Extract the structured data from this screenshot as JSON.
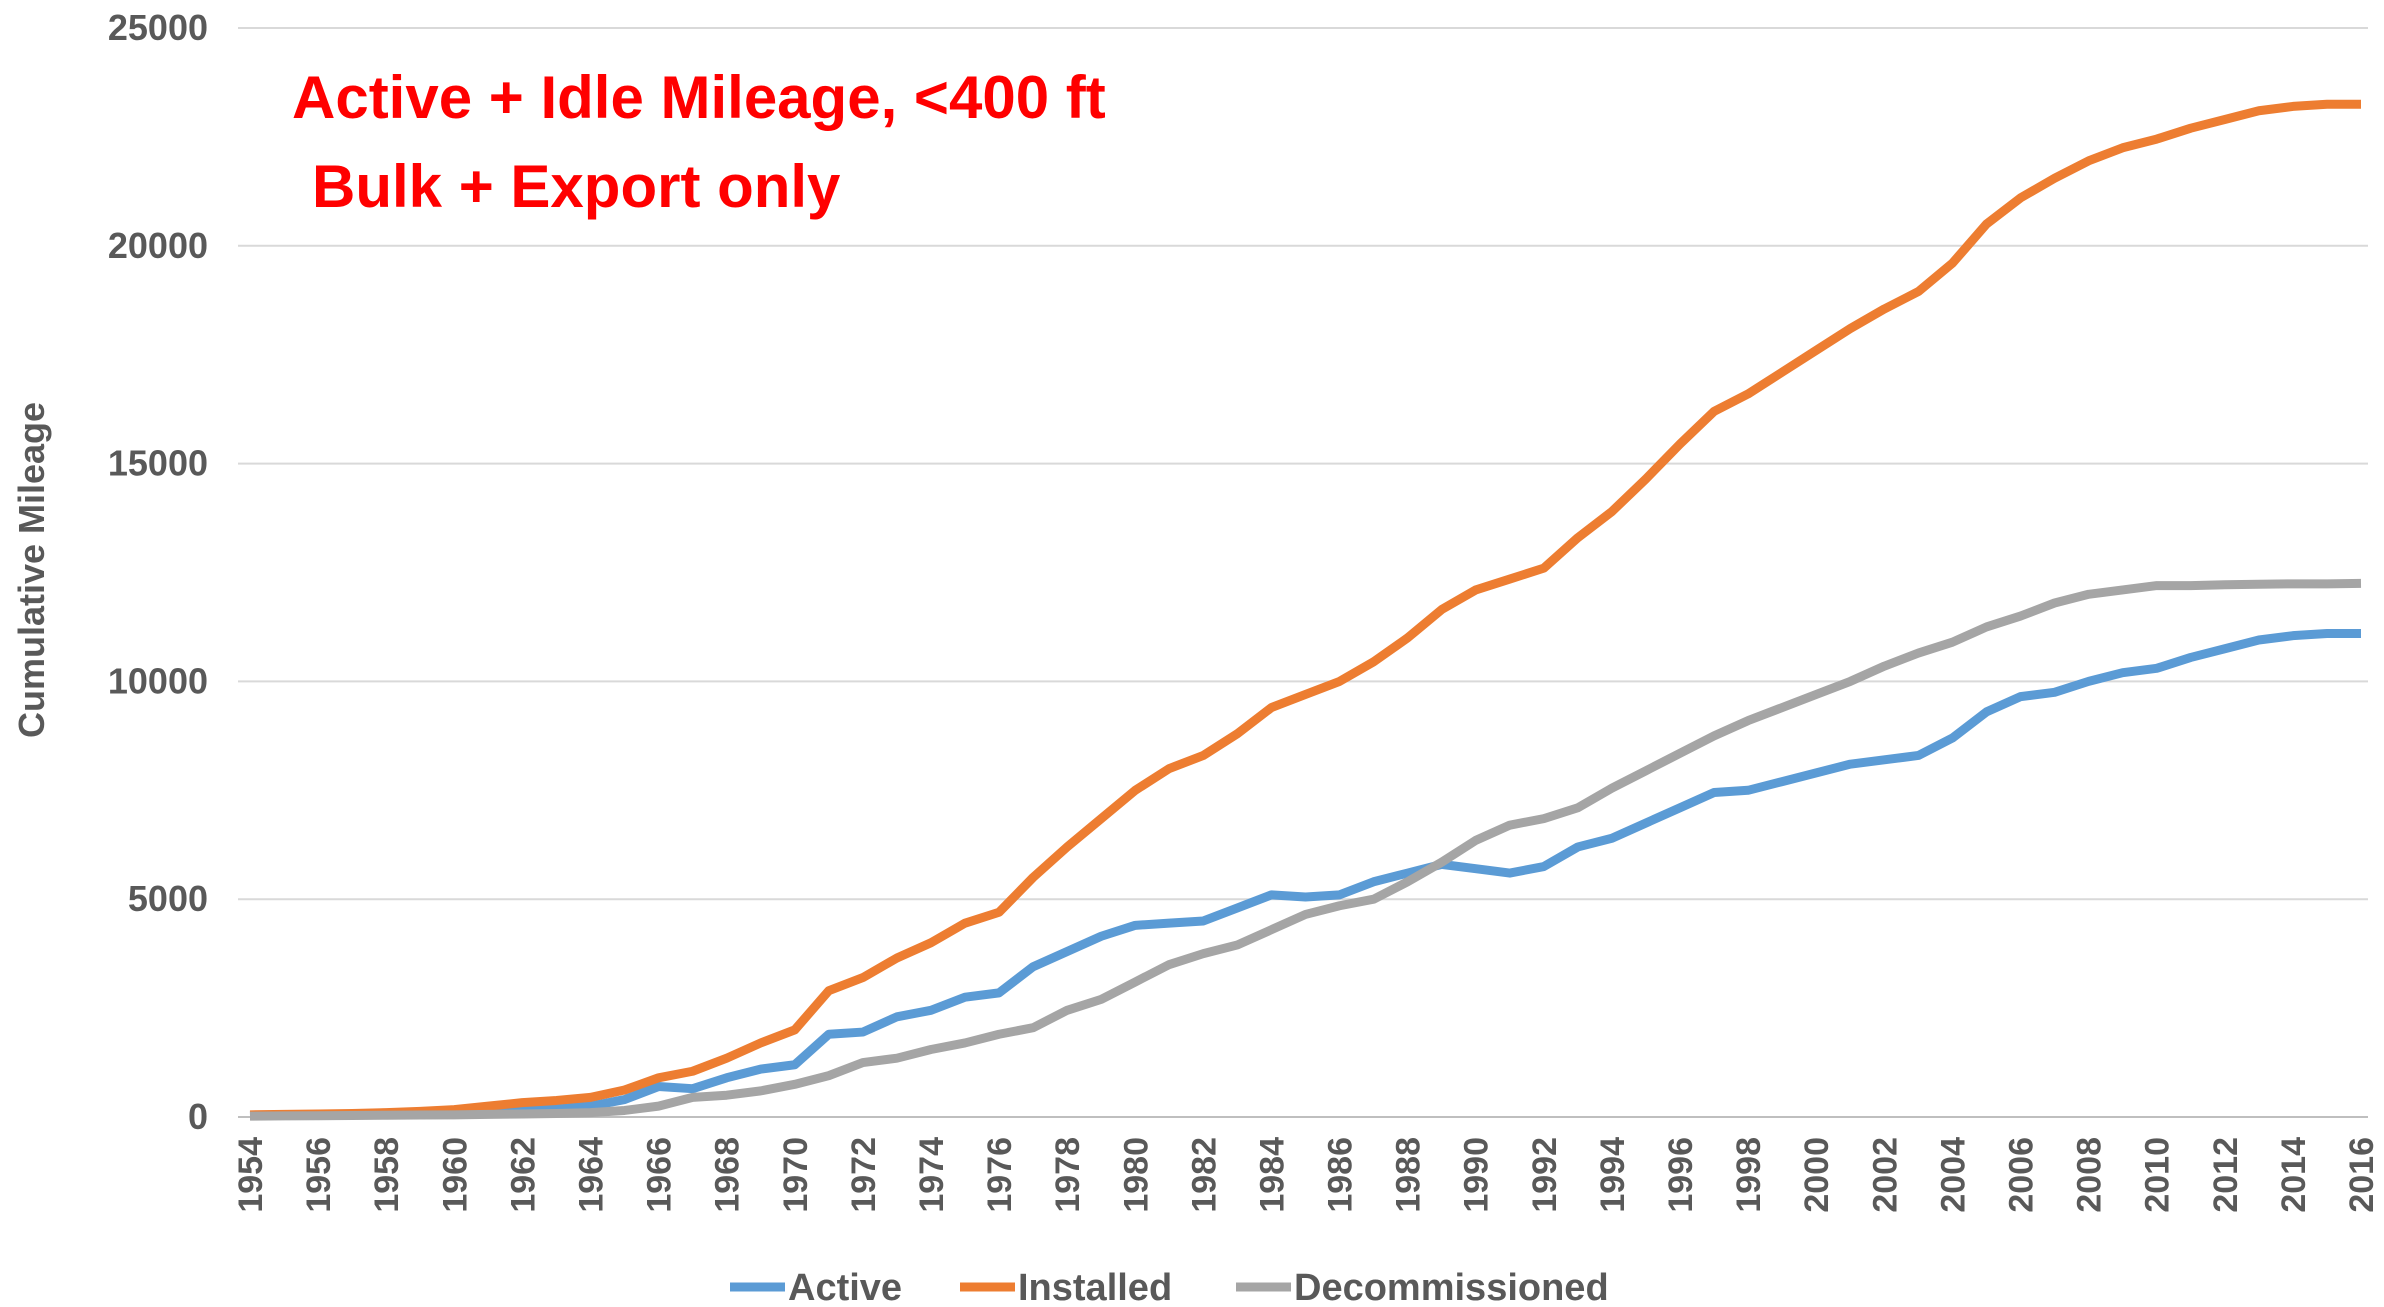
{
  "chart_data": {
    "type": "line",
    "title": "Active + Idle Mileage, <400 ft",
    "subtitle": "Bulk + Export only",
    "y_label": "Cumulative Mileage",
    "categories": [
      "1954",
      null,
      "1956",
      null,
      "1958",
      null,
      "1960",
      null,
      "1962",
      null,
      "1964",
      null,
      "1966",
      null,
      "1968",
      null,
      "1970",
      null,
      "1972",
      null,
      "1974",
      null,
      "1976",
      null,
      "1978",
      null,
      "1980",
      null,
      "1982",
      null,
      "1984",
      null,
      "1986",
      null,
      "1988",
      null,
      "1990",
      null,
      "1992",
      null,
      "1994",
      null,
      "1996",
      null,
      "1998",
      null,
      "2000",
      null,
      "2002",
      null,
      "2004",
      null,
      "2006",
      null,
      "2008",
      null,
      "2010",
      null,
      "2012",
      null,
      "2014",
      null,
      "2016"
    ],
    "series": [
      {
        "name": "Active",
        "color": "#5b9bd5",
        "values": [
          30,
          40,
          50,
          60,
          70,
          80,
          100,
          120,
          150,
          180,
          250,
          400,
          700,
          650,
          900,
          1100,
          1200,
          1900,
          1950,
          2300,
          2450,
          2750,
          2850,
          3450,
          3800,
          4150,
          4400,
          4450,
          4500,
          4800,
          5100,
          5050,
          5100,
          5400,
          5600,
          5800,
          5700,
          5600,
          5750,
          6200,
          6400,
          6750,
          7100,
          7450,
          7500,
          7700,
          7900,
          8100,
          8200,
          8300,
          8700,
          9300,
          9650,
          9750,
          10000,
          10200,
          10300,
          10550,
          10750,
          10950,
          11050,
          11100,
          11100
        ]
      },
      {
        "name": "Installed",
        "color": "#ed7d31",
        "values": [
          50,
          60,
          70,
          80,
          100,
          130,
          170,
          250,
          330,
          380,
          450,
          620,
          900,
          1050,
          1350,
          1700,
          2000,
          2900,
          3200,
          3650,
          4000,
          4450,
          4700,
          5500,
          6200,
          6850,
          7500,
          8000,
          8300,
          8800,
          9400,
          9700,
          10000,
          10450,
          11000,
          11650,
          12100,
          12350,
          12600,
          13300,
          13900,
          14650,
          15450,
          16200,
          16600,
          17100,
          17600,
          18100,
          18550,
          18950,
          19600,
          20500,
          21100,
          21550,
          21950,
          22250,
          22450,
          22700,
          22900,
          23100,
          23200,
          23250,
          23250
        ]
      },
      {
        "name": "Decommissioned",
        "color": "#a5a5a5",
        "values": [
          20,
          25,
          30,
          35,
          40,
          45,
          50,
          60,
          70,
          80,
          100,
          150,
          250,
          450,
          500,
          600,
          750,
          950,
          1250,
          1350,
          1550,
          1700,
          1900,
          2050,
          2450,
          2700,
          3100,
          3500,
          3750,
          3950,
          4300,
          4650,
          4850,
          5000,
          5400,
          5850,
          6350,
          6700,
          6850,
          7100,
          7550,
          7950,
          8350,
          8750,
          9100,
          9400,
          9700,
          10000,
          10350,
          10650,
          10900,
          11250,
          11500,
          11800,
          12000,
          12100,
          12200,
          12200,
          12220,
          12230,
          12240,
          12240,
          12250
        ]
      }
    ],
    "ylim": [
      0,
      25000
    ],
    "yticks": [
      0,
      5000,
      10000,
      15000,
      20000,
      25000
    ],
    "grid": true,
    "legend": "bottom",
    "title_color": "#ff0000"
  }
}
